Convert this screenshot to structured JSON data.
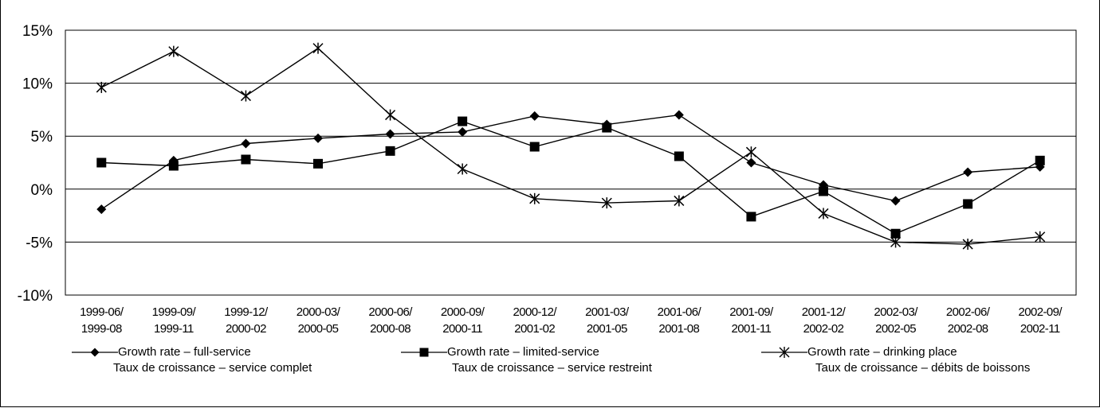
{
  "chart_data": {
    "type": "line",
    "title": "",
    "xlabel": "",
    "ylabel": "",
    "ylim": [
      -10,
      15
    ],
    "y_ticks": [
      -10,
      -5,
      0,
      5,
      10,
      15
    ],
    "y_tick_labels": [
      "-10%",
      "-5%",
      "0%",
      "5%",
      "10%",
      "15%"
    ],
    "grid": "horizontal",
    "legend_position": "bottom",
    "categories": [
      [
        "1999-06/",
        "1999-08"
      ],
      [
        "1999-09/",
        "1999-11"
      ],
      [
        "1999-12/",
        "2000-02"
      ],
      [
        "2000-03/",
        "2000-05"
      ],
      [
        "2000-06/",
        "2000-08"
      ],
      [
        "2000-09/",
        "2000-11"
      ],
      [
        "2000-12/",
        "2001-02"
      ],
      [
        "2001-03/",
        "2001-05"
      ],
      [
        "2001-06/",
        "2001-08"
      ],
      [
        "2001-09/",
        "2001-11"
      ],
      [
        "2001-12/",
        "2002-02"
      ],
      [
        "2002-03/",
        "2002-05"
      ],
      [
        "2002-06/",
        "2002-08"
      ],
      [
        "2002-09/",
        "2002-11"
      ]
    ],
    "series": [
      {
        "name": "Growth rate – full-service",
        "name_fr": "Taux de croissance – service complet",
        "marker": "diamond",
        "values": [
          -1.9,
          2.7,
          4.3,
          4.8,
          5.2,
          5.4,
          6.9,
          6.1,
          7.0,
          2.5,
          0.4,
          -1.1,
          1.6,
          2.1
        ]
      },
      {
        "name": "Growth rate – limited-service",
        "name_fr": "Taux de croissance – service restreint",
        "marker": "square",
        "values": [
          2.5,
          2.2,
          2.8,
          2.4,
          3.6,
          6.4,
          4.0,
          5.8,
          3.1,
          -2.6,
          -0.2,
          -4.2,
          -1.4,
          2.7
        ]
      },
      {
        "name": "Growth rate – drinking place",
        "name_fr": "Taux de croissance – débits de boissons",
        "marker": "asterisk",
        "values": [
          9.6,
          13.0,
          8.8,
          13.3,
          7.0,
          1.9,
          -0.9,
          -1.3,
          -1.1,
          3.5,
          -2.3,
          -5.0,
          -5.2,
          -4.5
        ]
      }
    ]
  }
}
